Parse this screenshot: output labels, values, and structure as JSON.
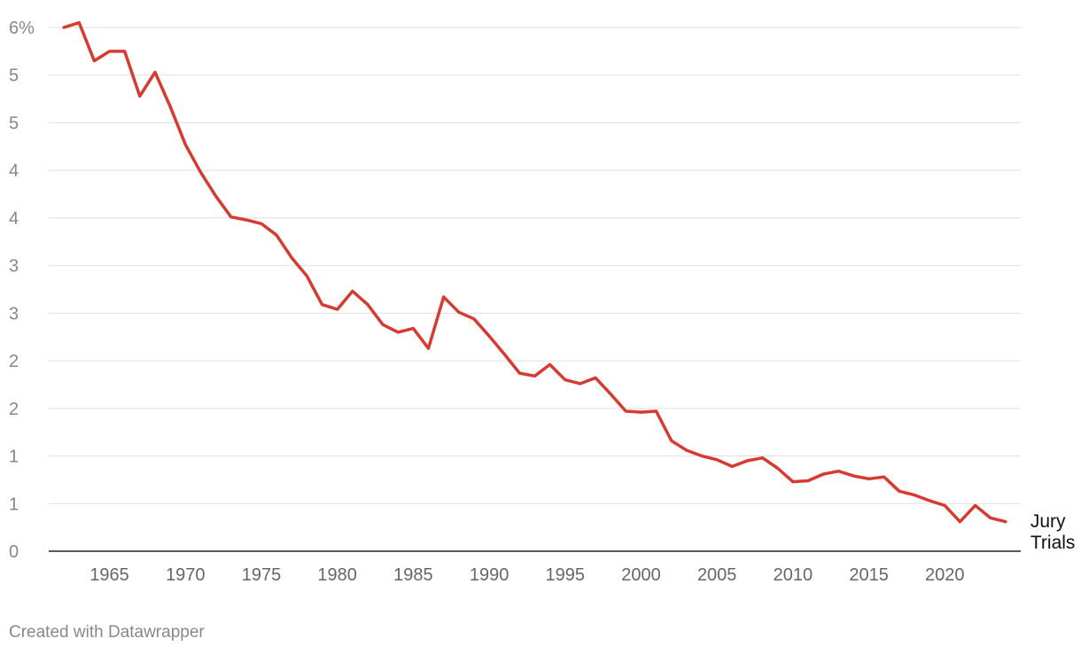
{
  "chart_data": {
    "type": "line",
    "title": "",
    "xlabel": "",
    "ylabel": "",
    "y_tick_labels": [
      "0",
      "1",
      "1",
      "2",
      "2",
      "3",
      "3",
      "4",
      "4",
      "5",
      "5",
      "6%"
    ],
    "ylim": [
      0,
      5.5
    ],
    "x_ticks": [
      1965,
      1970,
      1975,
      1980,
      1985,
      1990,
      1995,
      2000,
      2005,
      2010,
      2015,
      2020
    ],
    "xlim": [
      1961,
      2025
    ],
    "grid": true,
    "series": [
      {
        "name": "Jury Trials",
        "label_lines": [
          "Jury",
          "Trials"
        ],
        "color": "#d63a30",
        "x": [
          1962,
          1963,
          1964,
          1965,
          1966,
          1967,
          1968,
          1969,
          1970,
          1971,
          1972,
          1973,
          1974,
          1975,
          1976,
          1977,
          1978,
          1979,
          1980,
          1981,
          1982,
          1983,
          1984,
          1985,
          1986,
          1987,
          1988,
          1989,
          1990,
          1991,
          1992,
          1993,
          1994,
          1995,
          1996,
          1997,
          1998,
          1999,
          2000,
          2001,
          2002,
          2003,
          2004,
          2005,
          2006,
          2007,
          2008,
          2009,
          2010,
          2011,
          2012,
          2013,
          2014,
          2015,
          2016,
          2017,
          2018,
          2019,
          2020,
          2021,
          2022,
          2023,
          2024
        ],
        "values": [
          5.5,
          5.55,
          5.15,
          5.25,
          5.25,
          4.78,
          5.03,
          4.67,
          4.27,
          3.98,
          3.73,
          3.51,
          3.48,
          3.44,
          3.32,
          3.08,
          2.89,
          2.59,
          2.54,
          2.73,
          2.59,
          2.38,
          2.3,
          2.34,
          2.13,
          2.67,
          2.51,
          2.44,
          2.26,
          2.07,
          1.87,
          1.84,
          1.96,
          1.8,
          1.76,
          1.82,
          1.65,
          1.47,
          1.46,
          1.47,
          1.16,
          1.06,
          1.0,
          0.96,
          0.89,
          0.95,
          0.98,
          0.87,
          0.73,
          0.74,
          0.81,
          0.84,
          0.79,
          0.76,
          0.78,
          0.63,
          0.59,
          0.53,
          0.48,
          0.31,
          0.48,
          0.35,
          0.31
        ]
      }
    ]
  },
  "footer": {
    "credit": "Created with Datawrapper"
  }
}
